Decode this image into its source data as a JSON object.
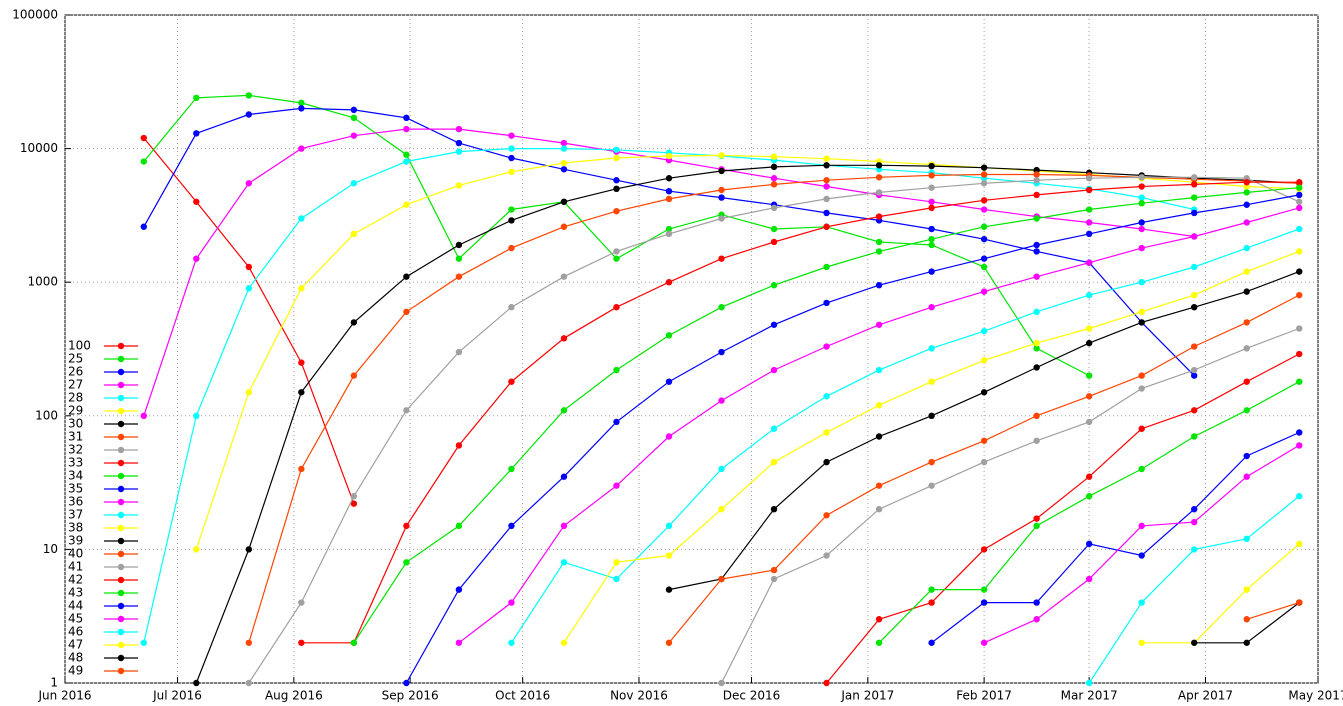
{
  "chart_data": {
    "type": "line",
    "log_y": true,
    "grid": true,
    "legend": "left",
    "x": [
      21,
      35,
      49,
      63,
      77,
      91,
      105,
      119,
      133,
      147,
      161,
      175,
      189,
      203,
      217,
      231,
      245,
      259,
      273,
      287,
      301,
      315,
      329
    ],
    "xlim": [
      0,
      334
    ],
    "xticks": [
      {
        "value": 0,
        "label": "Jun 2016"
      },
      {
        "value": 30,
        "label": "Jul 2016"
      },
      {
        "value": 61,
        "label": "Aug 2016"
      },
      {
        "value": 92,
        "label": "Sep 2016"
      },
      {
        "value": 122,
        "label": "Oct 2016"
      },
      {
        "value": 153,
        "label": "Nov 2016"
      },
      {
        "value": 183,
        "label": "Dec 2016"
      },
      {
        "value": 214,
        "label": "Jan 2017"
      },
      {
        "value": 245,
        "label": "Feb 2017"
      },
      {
        "value": 273,
        "label": "Mar 2017"
      },
      {
        "value": 304,
        "label": "Apr 2017"
      },
      {
        "value": 334,
        "label": "May 2017"
      }
    ],
    "ylim": [
      1,
      100000
    ],
    "yticks": [
      1,
      10,
      100,
      1000,
      10000,
      100000
    ],
    "series": [
      {
        "name": "100",
        "color": "#ff0000",
        "values": [
          12000,
          4000,
          1300,
          250,
          22,
          null,
          null,
          null,
          null,
          null,
          null,
          null,
          null,
          null,
          null,
          null,
          null,
          null,
          null,
          null,
          null,
          null,
          null
        ]
      },
      {
        "name": "25",
        "color": "#00e600",
        "values": [
          8000,
          24000,
          25000,
          22000,
          17000,
          9000,
          1500,
          3500,
          4000,
          1500,
          2500,
          3200,
          2500,
          2600,
          2000,
          1900,
          1300,
          320,
          200,
          null,
          null,
          null,
          null
        ]
      },
      {
        "name": "26",
        "color": "#0000ff",
        "values": [
          2600,
          13000,
          18000,
          20000,
          19500,
          17000,
          11000,
          8500,
          7000,
          5800,
          4800,
          4300,
          3800,
          3300,
          2900,
          2500,
          2100,
          1700,
          1400,
          500,
          200,
          null,
          null
        ]
      },
      {
        "name": "27",
        "color": "#ff00ff",
        "values": [
          100,
          1500,
          5500,
          10000,
          12500,
          14000,
          14000,
          12500,
          11000,
          9500,
          8200,
          7000,
          6000,
          5200,
          4500,
          4000,
          3500,
          3100,
          2800,
          2500,
          2200,
          null,
          null
        ]
      },
      {
        "name": "28",
        "color": "#00ffff",
        "values": [
          2,
          100,
          900,
          3000,
          5500,
          8000,
          9500,
          10000,
          10000,
          9800,
          9300,
          8800,
          8200,
          7500,
          7000,
          6600,
          6000,
          5500,
          5000,
          4300,
          3500,
          null,
          null
        ]
      },
      {
        "name": "29",
        "color": "#ffff00",
        "values": [
          null,
          10,
          150,
          900,
          2300,
          3800,
          5300,
          6700,
          7800,
          8500,
          8800,
          8900,
          8700,
          8400,
          8000,
          7600,
          7200,
          6800,
          6400,
          6000,
          5600,
          5200,
          5000
        ]
      },
      {
        "name": "30",
        "color": "#000000",
        "values": [
          null,
          1,
          10,
          150,
          500,
          1100,
          1900,
          2900,
          4000,
          5000,
          6000,
          6800,
          7300,
          7500,
          7500,
          7400,
          7200,
          6900,
          6600,
          6300,
          6000,
          5800,
          5500
        ]
      },
      {
        "name": "31",
        "color": "#ff4500",
        "values": [
          null,
          null,
          2,
          40,
          200,
          600,
          1100,
          1800,
          2600,
          3400,
          4200,
          4900,
          5400,
          5800,
          6100,
          6300,
          6400,
          6400,
          6300,
          6100,
          5900,
          5700,
          5500
        ]
      },
      {
        "name": "32",
        "color": "#a0a0a0",
        "values": [
          null,
          null,
          1,
          4,
          25,
          110,
          300,
          650,
          1100,
          1700,
          2300,
          3000,
          3600,
          4200,
          4700,
          5100,
          5500,
          5800,
          6000,
          6100,
          6100,
          6000,
          4000
        ]
      },
      {
        "name": "33",
        "color": "#ff0000",
        "values": [
          null,
          null,
          null,
          2,
          2,
          15,
          60,
          180,
          380,
          650,
          1000,
          1500,
          2000,
          2600,
          3100,
          3600,
          4100,
          4500,
          4900,
          5200,
          5400,
          5600,
          5600
        ]
      },
      {
        "name": "34",
        "color": "#00e600",
        "values": [
          null,
          null,
          null,
          null,
          2,
          8,
          15,
          40,
          110,
          220,
          400,
          650,
          950,
          1300,
          1700,
          2100,
          2600,
          3000,
          3500,
          3900,
          4300,
          4700,
          5100
        ]
      },
      {
        "name": "35",
        "color": "#0000ff",
        "values": [
          null,
          null,
          null,
          null,
          null,
          1,
          5,
          15,
          35,
          90,
          180,
          300,
          480,
          700,
          950,
          1200,
          1500,
          1900,
          2300,
          2800,
          3300,
          3800,
          4500
        ]
      },
      {
        "name": "36",
        "color": "#ff00ff",
        "values": [
          null,
          null,
          null,
          null,
          null,
          null,
          2,
          4,
          15,
          30,
          70,
          130,
          220,
          330,
          480,
          650,
          850,
          1100,
          1400,
          1800,
          2200,
          2800,
          3600
        ]
      },
      {
        "name": "37",
        "color": "#00ffff",
        "values": [
          null,
          null,
          null,
          null,
          null,
          null,
          null,
          2,
          8,
          6,
          15,
          40,
          80,
          140,
          220,
          320,
          430,
          600,
          800,
          1000,
          1300,
          1800,
          2500
        ]
      },
      {
        "name": "38",
        "color": "#ffff00",
        "values": [
          null,
          null,
          null,
          null,
          null,
          null,
          null,
          null,
          2,
          8,
          9,
          20,
          45,
          75,
          120,
          180,
          260,
          350,
          450,
          600,
          800,
          1200,
          1700
        ]
      },
      {
        "name": "39",
        "color": "#000000",
        "values": [
          null,
          null,
          null,
          null,
          null,
          null,
          null,
          null,
          null,
          null,
          5,
          6,
          20,
          45,
          70,
          100,
          150,
          230,
          350,
          500,
          650,
          850,
          1200
        ]
      },
      {
        "name": "40",
        "color": "#ff4500",
        "values": [
          null,
          null,
          null,
          null,
          null,
          null,
          null,
          null,
          null,
          null,
          2,
          6,
          7,
          18,
          30,
          45,
          65,
          100,
          140,
          200,
          330,
          500,
          800
        ]
      },
      {
        "name": "41",
        "color": "#a0a0a0",
        "values": [
          null,
          null,
          null,
          null,
          null,
          null,
          null,
          null,
          null,
          null,
          null,
          1,
          6,
          9,
          20,
          30,
          45,
          65,
          90,
          160,
          220,
          320,
          450
        ]
      },
      {
        "name": "42",
        "color": "#ff0000",
        "values": [
          null,
          null,
          null,
          null,
          null,
          null,
          null,
          null,
          null,
          null,
          null,
          null,
          null,
          1,
          3,
          4,
          10,
          17,
          35,
          80,
          110,
          180,
          290
        ]
      },
      {
        "name": "43",
        "color": "#00e600",
        "values": [
          null,
          null,
          null,
          null,
          null,
          null,
          null,
          null,
          null,
          null,
          null,
          null,
          null,
          null,
          2,
          5,
          5,
          15,
          25,
          40,
          70,
          110,
          180
        ]
      },
      {
        "name": "44",
        "color": "#0000ff",
        "values": [
          null,
          null,
          null,
          null,
          null,
          null,
          null,
          null,
          null,
          null,
          null,
          null,
          null,
          null,
          null,
          2,
          4,
          4,
          11,
          9,
          20,
          50,
          75
        ]
      },
      {
        "name": "45",
        "color": "#ff00ff",
        "values": [
          null,
          null,
          null,
          null,
          null,
          null,
          null,
          null,
          null,
          null,
          null,
          null,
          null,
          null,
          null,
          null,
          2,
          3,
          6,
          15,
          16,
          35,
          60
        ]
      },
      {
        "name": "46",
        "color": "#00ffff",
        "values": [
          null,
          null,
          null,
          null,
          null,
          null,
          null,
          null,
          null,
          null,
          null,
          null,
          null,
          null,
          null,
          null,
          null,
          null,
          1,
          4,
          10,
          12,
          25
        ]
      },
      {
        "name": "47",
        "color": "#ffff00",
        "values": [
          null,
          null,
          null,
          null,
          null,
          null,
          null,
          null,
          null,
          null,
          null,
          null,
          null,
          null,
          null,
          null,
          null,
          null,
          null,
          2,
          2,
          5,
          11
        ]
      },
      {
        "name": "48",
        "color": "#000000",
        "values": [
          null,
          null,
          null,
          null,
          null,
          null,
          null,
          null,
          null,
          null,
          null,
          null,
          null,
          null,
          null,
          null,
          null,
          null,
          null,
          null,
          2,
          2,
          4
        ]
      },
      {
        "name": "49",
        "color": "#ff4500",
        "values": [
          null,
          null,
          null,
          null,
          null,
          null,
          null,
          null,
          null,
          null,
          null,
          null,
          null,
          null,
          null,
          null,
          null,
          null,
          null,
          null,
          null,
          3,
          4
        ]
      }
    ]
  }
}
